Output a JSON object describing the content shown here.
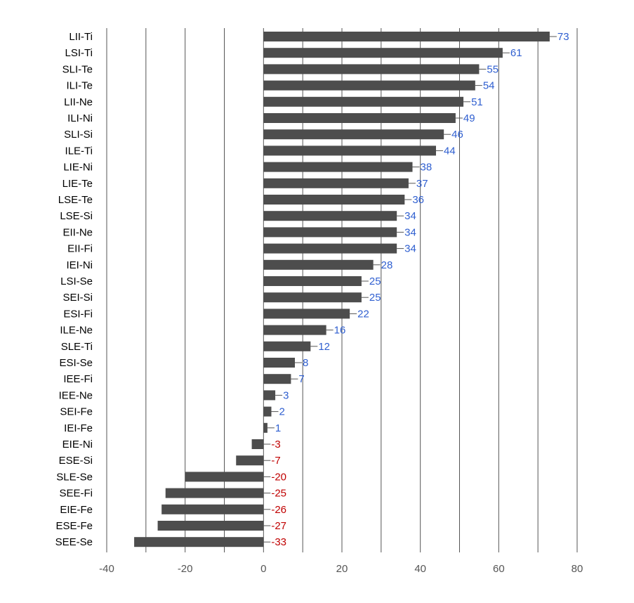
{
  "chart_data": {
    "type": "bar",
    "orientation": "horizontal",
    "categories": [
      "LII-Ti",
      "LSI-Ti",
      "SLI-Te",
      "ILI-Te",
      "LII-Ne",
      "ILI-Ni",
      "SLI-Si",
      "ILE-Ti",
      "LIE-Ni",
      "LIE-Te",
      "LSE-Te",
      "LSE-Si",
      "EII-Ne",
      "EII-Fi",
      "IEI-Ni",
      "LSI-Se",
      "SEI-Si",
      "ESI-Fi",
      "ILE-Ne",
      "SLE-Ti",
      "ESI-Se",
      "IEE-Fi",
      "IEE-Ne",
      "SEI-Fe",
      "IEI-Fe",
      "EIE-Ni",
      "ESE-Si",
      "SLE-Se",
      "SEE-Fi",
      "EIE-Fe",
      "ESE-Fe",
      "SEE-Se"
    ],
    "values": [
      73,
      61,
      55,
      54,
      51,
      49,
      46,
      44,
      38,
      37,
      36,
      34,
      34,
      34,
      28,
      25,
      25,
      22,
      16,
      12,
      8,
      7,
      3,
      2,
      1,
      -3,
      -7,
      -20,
      -25,
      -26,
      -27,
      -33
    ],
    "xlim": [
      -40,
      80
    ],
    "xticks": [
      -40,
      -20,
      0,
      20,
      40,
      60,
      80
    ],
    "gridlines": [
      -40,
      -30,
      -20,
      -10,
      0,
      10,
      20,
      30,
      40,
      50,
      60,
      70,
      80
    ],
    "grid": true,
    "title": "",
    "xlabel": "",
    "ylabel": "",
    "colors": {
      "bar": "#4d4d4d",
      "positive_label": "#2f5fd0",
      "negative_label": "#c00000",
      "grid": "#555555"
    }
  }
}
